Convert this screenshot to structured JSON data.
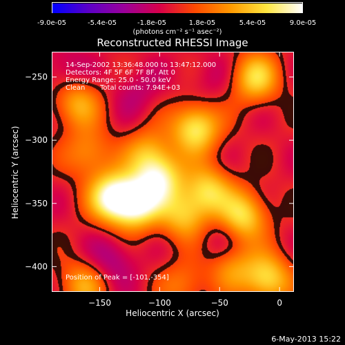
{
  "colorbar": {
    "tick_labels": [
      "-9.0e-05",
      "-5.4e-05",
      "-1.8e-05",
      "1.8e-05",
      "5.4e-05",
      "9.0e-05"
    ],
    "unit_label": "(photons cm⁻² s⁻¹ asec⁻²)",
    "range": [
      -9e-05,
      9e-05
    ],
    "colors": [
      "#0000ff",
      "#5a00c8",
      "#9b009b",
      "#d8004a",
      "#ff4a00",
      "#ff9a00",
      "#ffe640",
      "#ffffff"
    ]
  },
  "chart_data": {
    "type": "heatmap",
    "title": "Reconstructed RHESSI Image",
    "xlabel": "Heliocentric X (arcsec)",
    "ylabel": "Heliocentric Y (arcsec)",
    "xlim": [
      -190,
      12
    ],
    "ylim": [
      -420,
      -230
    ],
    "x_ticks": [
      -150,
      -100,
      -50,
      0
    ],
    "y_ticks": [
      -250,
      -300,
      -350,
      -400
    ],
    "x_tick_labels": [
      "−150",
      "−100",
      "−50",
      "0"
    ],
    "y_tick_labels": [
      "−250",
      "−300",
      "−350",
      "−400"
    ],
    "annotations": {
      "time_range": "14-Sep-2002 13:36:48.000 to 13:47:12.000",
      "detectors": "Detectors: 4F 5F 6F 7F 8F, Att 0",
      "energy_range": "Energy Range: 25.0 - 50.0 keV",
      "clean": "Clean",
      "total_counts": "Total counts: 7.94E+03",
      "peak": "Position of Peak = [-101,-354]"
    },
    "peak_position": [
      -101,
      -354
    ],
    "blobs": [
      {
        "x": -120,
        "y": -350,
        "value": 1.0
      },
      {
        "x": -140,
        "y": -345,
        "value": 0.95
      },
      {
        "x": -100,
        "y": -330,
        "value": 0.8
      },
      {
        "x": -70,
        "y": -290,
        "value": 0.85
      },
      {
        "x": -60,
        "y": -340,
        "value": 0.7
      },
      {
        "x": -30,
        "y": -360,
        "value": 0.75
      },
      {
        "x": -20,
        "y": -250,
        "value": 0.7
      },
      {
        "x": -10,
        "y": -410,
        "value": 0.75
      },
      {
        "x": -170,
        "y": -270,
        "value": 0.55
      },
      {
        "x": -160,
        "y": -310,
        "value": 0.45
      },
      {
        "x": -110,
        "y": -310,
        "value": 0.5
      },
      {
        "x": -80,
        "y": -360,
        "value": 0.6
      },
      {
        "x": -165,
        "y": -415,
        "value": 0.5
      },
      {
        "x": -80,
        "y": -415,
        "value": 0.35
      },
      {
        "x": -40,
        "y": -400,
        "value": 0.45
      },
      {
        "x": -140,
        "y": -395,
        "value": -0.3
      },
      {
        "x": -50,
        "y": -380,
        "value": -0.2
      },
      {
        "x": -120,
        "y": -260,
        "value": -0.2
      },
      {
        "x": -60,
        "y": -250,
        "value": -0.15
      },
      {
        "x": -180,
        "y": -245,
        "value": -0.25
      }
    ]
  },
  "footer": {
    "date": "6-May-2013 15:22"
  }
}
